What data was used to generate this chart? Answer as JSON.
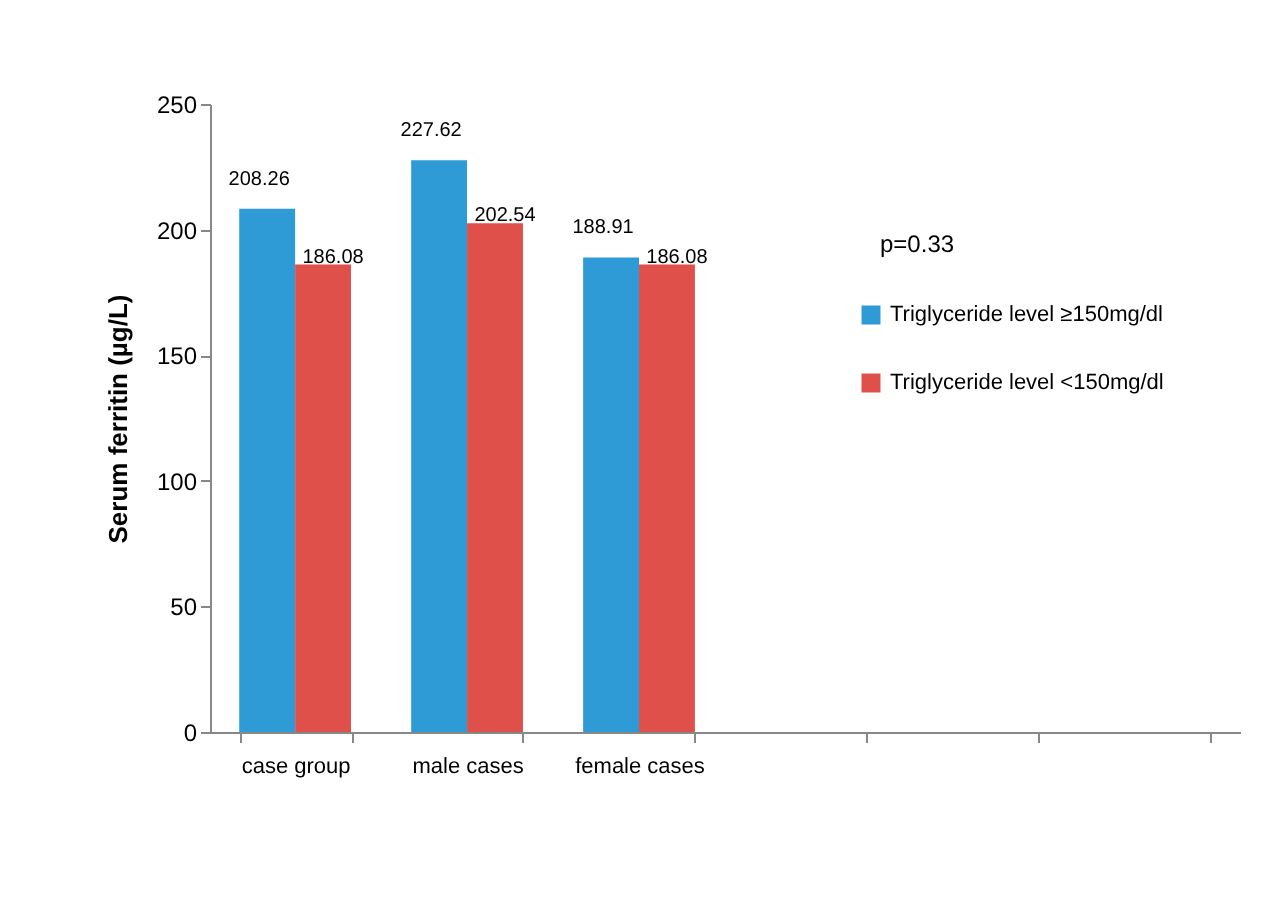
{
  "chart_data": {
    "type": "bar",
    "ylabel": "Serum ferritin (µg/L)",
    "categories": [
      "case group",
      "male cases",
      "female cases",
      null,
      null,
      null
    ],
    "series": [
      {
        "name": "Triglyceride level ≥150mg/dl",
        "color": "#2e9ad6",
        "values": [
          208.26,
          227.62,
          188.91,
          null,
          null,
          null
        ]
      },
      {
        "name": "Triglyceride level <150mg/dl",
        "color": "#e0504a",
        "values": [
          186.08,
          202.54,
          186.08,
          null,
          null,
          null
        ]
      }
    ],
    "ylim": [
      0,
      250
    ],
    "yticks": [
      0,
      50,
      100,
      150,
      200,
      250
    ],
    "grid": false,
    "legend": "right",
    "data_labels": true,
    "annotations": [
      "p=0.33"
    ]
  }
}
